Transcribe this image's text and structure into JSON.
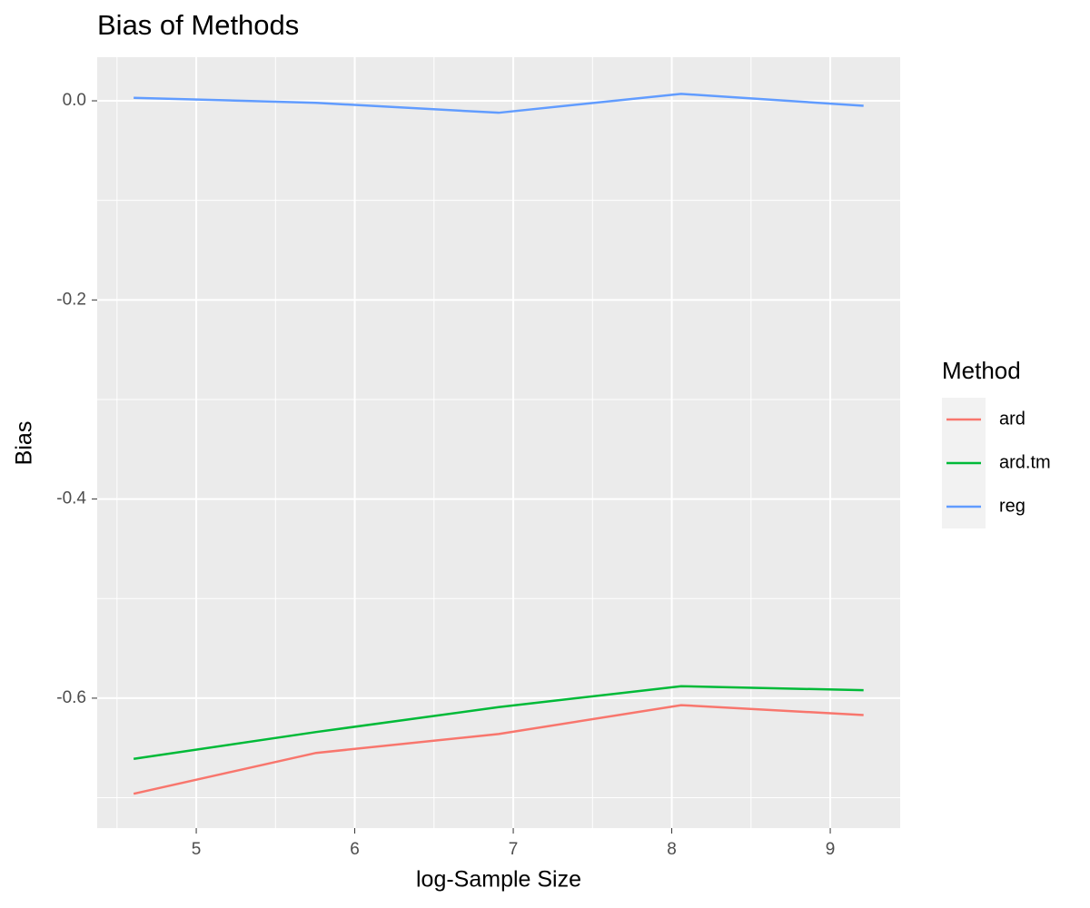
{
  "chart_data": {
    "type": "line",
    "title": "Bias of Methods",
    "x_label": "log-Sample Size",
    "y_label": "Bias",
    "legend_title": "Method",
    "legend_position": "right",
    "grid": true,
    "x": [
      4.605,
      5.756,
      6.908,
      8.059,
      9.21
    ],
    "series": [
      {
        "name": "ard",
        "color": "#f8766d",
        "values": [
          -0.696,
          -0.655,
          -0.636,
          -0.607,
          -0.617
        ]
      },
      {
        "name": "ard.tm",
        "color": "#00ba38",
        "values": [
          -0.661,
          -0.634,
          -0.609,
          -0.588,
          -0.592
        ]
      },
      {
        "name": "reg",
        "color": "#619cff",
        "values": [
          0.003,
          -0.002,
          -0.012,
          0.007,
          -0.005
        ]
      }
    ],
    "xlim": [
      4.375,
      9.441
    ],
    "xticks": [
      5,
      6,
      7,
      8,
      9
    ],
    "ylim": [
      -0.7305,
      0.0438
    ],
    "yticks": [
      {
        "value": 0,
        "label": "0.0"
      },
      -0.2,
      -0.4,
      -0.6
    ]
  }
}
